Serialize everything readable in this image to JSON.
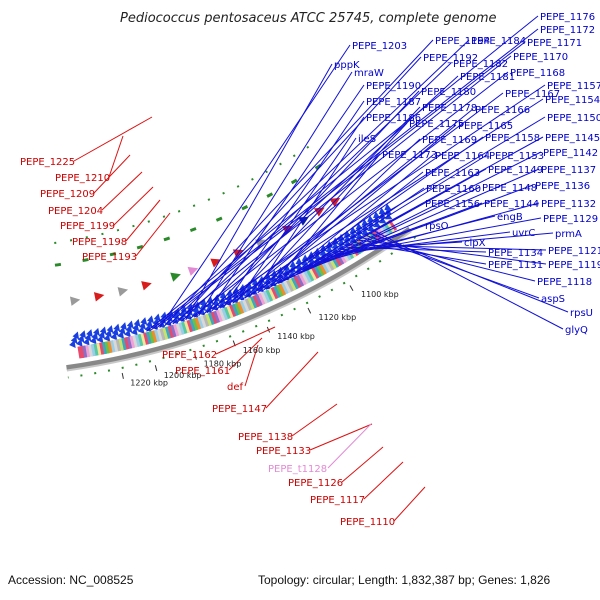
{
  "title": "Pediococcus pentosaceus ATCC 25745, complete genome",
  "footer": {
    "accession": "Accession: NC_008525",
    "summary": "Topology: circular; Length: 1,832,387 bp; Genes: 1,826"
  },
  "colors": {
    "forward_label": "#0000cc",
    "reverse_label": "#cc0000",
    "trna_label": "#e38ad4",
    "backbone": "#888888",
    "cds": "#1a3fe0"
  },
  "scale_ticks": [
    "1220 kbp",
    "1200 kbp",
    "1180 kbp",
    "1160 kbp",
    "1140 kbp",
    "1120 kbp",
    "1100 kbp"
  ],
  "forward_labels": [
    "PEPE_1176",
    "PEPE_1172",
    "PEPE_1171",
    "PEPE_1203",
    "PEPE_1194",
    "PEPE_1184",
    "PEPE_1170",
    "PEPE_1192",
    "PEPE_1182",
    "pppK",
    "PEPE_1168",
    "PEPE_1181",
    "mraW",
    "PEPE_1157",
    "PEPE_1190",
    "PEPE_1180",
    "PEPE_1167",
    "PEPE_1154",
    "PEPE_1187",
    "PEPE_1178",
    "PEPE_1166",
    "PEPE_1186",
    "PEPE_1150",
    "PEPE_1175",
    "PEPE_1165",
    "ileS",
    "PEPE_1169",
    "PEPE_1158",
    "PEPE_1145",
    "PEPE_1173",
    "PEPE_1164",
    "PEPE_1153",
    "PEPE_1142",
    "PEPE_1163",
    "PEPE_1149",
    "PEPE_1137",
    "PEPE_1160",
    "PEPE_1148",
    "PEPE_1136",
    "PEPE_1156",
    "PEPE_1144",
    "PEPE_1132",
    "rpsO",
    "engB",
    "PEPE_1129",
    "uvrC",
    "prmA",
    "clpX",
    "PEPE_1134",
    "PEPE_1121",
    "PEPE_1131",
    "PEPE_1119",
    "PEPE_1118",
    "aspS",
    "rpsU",
    "glyQ"
  ],
  "reverse_labels": [
    "PEPE_1225",
    "PEPE_1210",
    "PEPE_1209",
    "PEPE_1204",
    "PEPE_1199",
    "PEPE_1198",
    "PEPE_1193",
    "PEPE_1162",
    "PEPE_1161",
    "def",
    "PEPE_1147",
    "PEPE_1138",
    "PEPE_1133",
    "PEPE_t1128",
    "PEPE_1126",
    "PEPE_1117",
    "PEPE_1110"
  ]
}
